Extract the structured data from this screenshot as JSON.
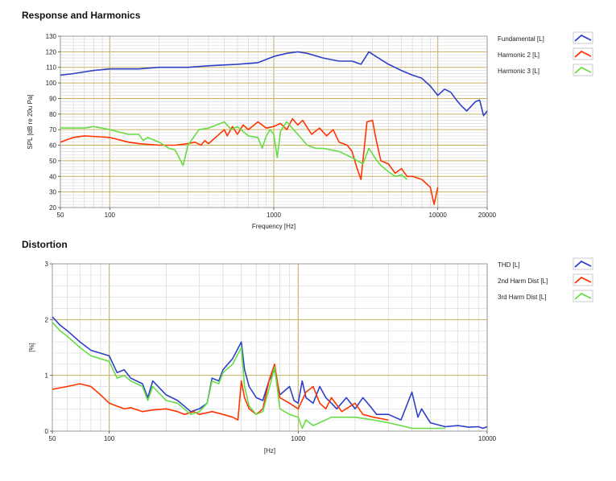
{
  "colors": {
    "blue": "#2f3fc8",
    "red": "#ff3300",
    "green": "#66dd44",
    "minor_grid": "#d8d8d8",
    "major_grid": "#c8b060",
    "frame": "#999999"
  },
  "chart_data": [
    {
      "type": "line",
      "title": "Response and Harmonics",
      "xlabel": "Frequency [Hz]",
      "ylabel": "SPL [dB re 20u Pa]",
      "xscale": "log",
      "xlim": [
        50,
        20000
      ],
      "ylim": [
        20,
        130
      ],
      "xticks": [
        50,
        100,
        1000,
        10000,
        20000
      ],
      "xtick_labels": [
        "50",
        "100",
        "1000",
        "10000",
        "20000"
      ],
      "yticks": [
        20,
        30,
        40,
        50,
        60,
        70,
        80,
        90,
        100,
        110,
        120,
        130
      ],
      "ytick_labels": [
        "20",
        "30",
        "40",
        "50",
        "60",
        "70",
        "80",
        "90",
        "100",
        "110",
        "120",
        "130"
      ],
      "legend": "right",
      "series": [
        {
          "name": "Fundamental [L]",
          "color": "#2f3fc8",
          "x": [
            50,
            60,
            80,
            100,
            150,
            200,
            300,
            400,
            600,
            800,
            1000,
            1200,
            1400,
            1600,
            2000,
            2500,
            3000,
            3400,
            3800,
            4200,
            5000,
            6000,
            7000,
            8000,
            9000,
            10000,
            11000,
            12000,
            13000,
            14000,
            15000,
            17000,
            18000,
            19000,
            20000
          ],
          "y": [
            105,
            106,
            108,
            109,
            109,
            110,
            110,
            111,
            112,
            113,
            117,
            119,
            120,
            119,
            116,
            114,
            114,
            112,
            120,
            117,
            112,
            108,
            105,
            103,
            98,
            92,
            96,
            94,
            89,
            85,
            82,
            88,
            89,
            79,
            82
          ]
        },
        {
          "name": "Harmonic 2 [L]",
          "color": "#ff3300",
          "x": [
            50,
            60,
            70,
            100,
            130,
            150,
            200,
            250,
            300,
            330,
            360,
            380,
            400,
            500,
            520,
            560,
            600,
            650,
            700,
            800,
            900,
            1000,
            1100,
            1200,
            1300,
            1400,
            1500,
            1700,
            1900,
            2100,
            2300,
            2500,
            2800,
            3000,
            3200,
            3400,
            3700,
            4000,
            4200,
            4500,
            5000,
            5500,
            6000,
            6500,
            7000,
            8000,
            9000,
            9500,
            10000
          ],
          "y": [
            62,
            65,
            66,
            65,
            62,
            61,
            60,
            60,
            61,
            62,
            60,
            63,
            61,
            70,
            66,
            72,
            67,
            73,
            70,
            75,
            71,
            72,
            74,
            70,
            77,
            73,
            76,
            67,
            71,
            66,
            70,
            62,
            60,
            56,
            46,
            38,
            75,
            76,
            64,
            50,
            48,
            42,
            45,
            40,
            40,
            38,
            33,
            22,
            33
          ]
        },
        {
          "name": "Harmonic 3 [L]",
          "color": "#66dd44",
          "x": [
            50,
            70,
            80,
            100,
            130,
            150,
            160,
            170,
            200,
            230,
            250,
            280,
            300,
            350,
            400,
            500,
            550,
            600,
            700,
            800,
            850,
            900,
            950,
            1000,
            1050,
            1100,
            1200,
            1400,
            1600,
            1800,
            2000,
            2500,
            3000,
            3500,
            3800,
            4200,
            4500,
            5000,
            5500,
            6000,
            6500
          ],
          "y": [
            71,
            71,
            72,
            70,
            67,
            67,
            63,
            65,
            62,
            58,
            57,
            47,
            60,
            70,
            71,
            75,
            70,
            72,
            66,
            65,
            58,
            66,
            70,
            67,
            52,
            69,
            75,
            67,
            60,
            58,
            58,
            56,
            52,
            48,
            58,
            51,
            47,
            43,
            40,
            41,
            38
          ]
        }
      ]
    },
    {
      "type": "line",
      "title": "Distortion",
      "xlabel": "[Hz]",
      "ylabel": "[%]",
      "xscale": "log",
      "xlim": [
        50,
        10000
      ],
      "ylim": [
        0,
        3
      ],
      "xticks": [
        50,
        100,
        1000,
        10000
      ],
      "xtick_labels": [
        "50",
        "100",
        "1000",
        "10000"
      ],
      "yticks": [
        0,
        1,
        2,
        3
      ],
      "ytick_labels": [
        "0",
        "1",
        "2",
        "3"
      ],
      "legend": "right",
      "series": [
        {
          "name": "THD [L]",
          "color": "#2f3fc8",
          "x": [
            50,
            55,
            60,
            70,
            80,
            100,
            110,
            120,
            130,
            150,
            160,
            170,
            200,
            230,
            270,
            300,
            330,
            350,
            380,
            400,
            450,
            500,
            520,
            550,
            600,
            650,
            700,
            750,
            800,
            900,
            950,
            1000,
            1050,
            1100,
            1200,
            1300,
            1400,
            1500,
            1600,
            1800,
            2000,
            2200,
            2400,
            2600,
            3000,
            3500,
            4000,
            4300,
            4500,
            5000,
            6000,
            7000,
            8000,
            9000,
            9500,
            10000
          ],
          "y": [
            2.05,
            1.9,
            1.8,
            1.6,
            1.45,
            1.35,
            1.05,
            1.1,
            0.95,
            0.85,
            0.6,
            0.9,
            0.65,
            0.55,
            0.35,
            0.4,
            0.5,
            0.95,
            0.9,
            1.1,
            1.3,
            1.6,
            1.1,
            0.8,
            0.6,
            0.55,
            0.9,
            1.1,
            0.65,
            0.8,
            0.55,
            0.5,
            0.9,
            0.6,
            0.5,
            0.8,
            0.6,
            0.5,
            0.4,
            0.6,
            0.4,
            0.6,
            0.45,
            0.3,
            0.3,
            0.2,
            0.7,
            0.25,
            0.4,
            0.15,
            0.08,
            0.1,
            0.07,
            0.08,
            0.05,
            0.08
          ]
        },
        {
          "name": "2nd Harm Dist [L]",
          "color": "#ff3300",
          "x": [
            50,
            60,
            70,
            80,
            90,
            100,
            120,
            130,
            150,
            170,
            200,
            230,
            250,
            280,
            300,
            350,
            400,
            450,
            480,
            500,
            520,
            550,
            600,
            650,
            700,
            750,
            800,
            900,
            1000,
            1100,
            1200,
            1300,
            1400,
            1500,
            1700,
            2000,
            2200,
            2500,
            3000
          ],
          "y": [
            0.75,
            0.8,
            0.85,
            0.8,
            0.65,
            0.5,
            0.4,
            0.42,
            0.35,
            0.38,
            0.4,
            0.35,
            0.3,
            0.35,
            0.3,
            0.35,
            0.3,
            0.25,
            0.2,
            0.9,
            0.6,
            0.4,
            0.3,
            0.4,
            0.9,
            1.2,
            0.6,
            0.5,
            0.4,
            0.7,
            0.8,
            0.5,
            0.4,
            0.6,
            0.35,
            0.5,
            0.3,
            0.25,
            0.2
          ]
        },
        {
          "name": "3rd Harm Dist [L]",
          "color": "#66dd44",
          "x": [
            50,
            55,
            60,
            70,
            80,
            100,
            110,
            120,
            130,
            150,
            160,
            170,
            200,
            230,
            270,
            300,
            330,
            350,
            380,
            400,
            450,
            500,
            520,
            550,
            600,
            650,
            700,
            750,
            800,
            900,
            1000,
            1050,
            1100,
            1200,
            1500,
            2000,
            2500,
            3000,
            3500,
            4000,
            5000,
            6000
          ],
          "y": [
            1.95,
            1.8,
            1.7,
            1.5,
            1.35,
            1.25,
            0.95,
            1.0,
            0.9,
            0.8,
            0.55,
            0.8,
            0.55,
            0.5,
            0.3,
            0.35,
            0.5,
            0.9,
            0.85,
            1.05,
            1.2,
            1.5,
            0.8,
            0.45,
            0.3,
            0.35,
            0.75,
            1.15,
            0.4,
            0.3,
            0.25,
            0.05,
            0.2,
            0.1,
            0.25,
            0.25,
            0.2,
            0.15,
            0.1,
            0.05,
            0.05,
            0.05
          ]
        }
      ]
    }
  ]
}
